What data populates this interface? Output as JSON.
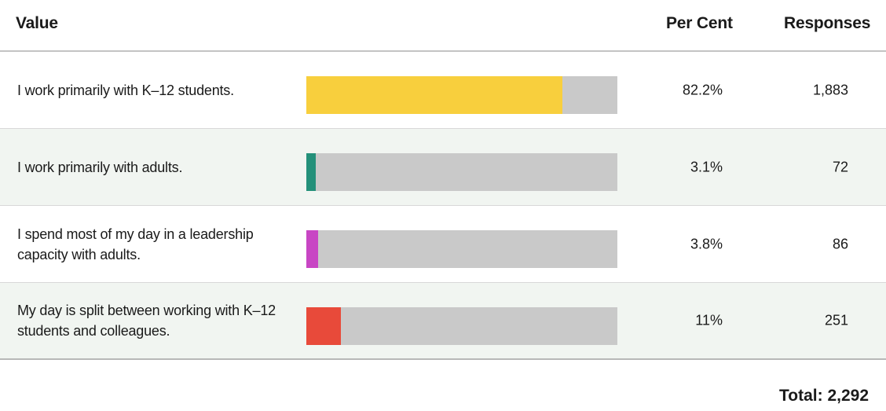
{
  "header": {
    "value_label": "Value",
    "percent_label": "Per Cent",
    "responses_label": "Responses"
  },
  "total_label": "Total: 2,292",
  "chart_data": {
    "type": "bar",
    "orientation": "horizontal",
    "categories": [
      "I work primarily with K–12 students.",
      "I work primarily with adults.",
      "I spend most of my day in a leadership capacity with adults.",
      "My day is split between working with K–12 students and colleagues."
    ],
    "values": [
      82.2,
      3.1,
      3.8,
      11
    ],
    "percent_labels": [
      "82.2%",
      "3.1%",
      "3.8%",
      "11%"
    ],
    "responses": [
      "1,883",
      "72",
      "86",
      "251"
    ],
    "colors": [
      "#f8cf3d",
      "#24907a",
      "#c846c4",
      "#e84a3a"
    ],
    "track_color": "#c9c9c9",
    "xlim": [
      0,
      100
    ],
    "grid": false
  }
}
